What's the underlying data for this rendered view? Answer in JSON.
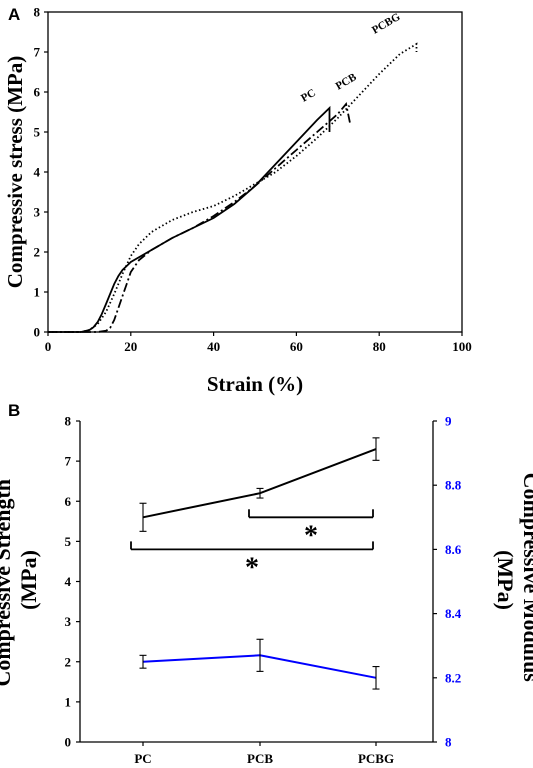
{
  "panels": [
    {
      "label": "A"
    },
    {
      "label": "B"
    }
  ],
  "chart_data": [
    {
      "type": "line",
      "panel": "A",
      "xlabel": "Strain (%)",
      "ylabel": "Compressive stress (MPa)",
      "xlim": [
        0,
        100
      ],
      "ylim": [
        0,
        8
      ],
      "xticks": [
        "0",
        "20",
        "40",
        "60",
        "80",
        "100"
      ],
      "yticks": [
        "0",
        "1",
        "2",
        "3",
        "4",
        "5",
        "6",
        "7",
        "8"
      ],
      "series": [
        {
          "name": "PC",
          "style": "solid",
          "x": [
            0,
            8,
            10,
            11,
            12,
            13,
            14,
            15,
            16,
            17,
            18,
            19,
            20,
            25,
            30,
            35,
            40,
            45,
            50,
            55,
            60,
            65,
            68,
            68
          ],
          "y": [
            0,
            0,
            0.05,
            0.12,
            0.25,
            0.45,
            0.7,
            0.95,
            1.2,
            1.4,
            1.55,
            1.65,
            1.75,
            2.05,
            2.35,
            2.6,
            2.85,
            3.2,
            3.65,
            4.2,
            4.75,
            5.3,
            5.6,
            5.0
          ]
        },
        {
          "name": "PCB",
          "style": "dashdot",
          "x": [
            0,
            12,
            14,
            15,
            16,
            17,
            18,
            19,
            20,
            22,
            25,
            30,
            35,
            40,
            45,
            50,
            55,
            60,
            65,
            70,
            72,
            73
          ],
          "y": [
            0,
            0,
            0.03,
            0.1,
            0.3,
            0.6,
            0.9,
            1.2,
            1.5,
            1.8,
            2.05,
            2.35,
            2.6,
            2.9,
            3.25,
            3.65,
            4.1,
            4.55,
            5.0,
            5.45,
            5.7,
            5.2
          ]
        },
        {
          "name": "PCBG",
          "style": "dotted",
          "x": [
            0,
            8,
            10,
            12,
            14,
            16,
            18,
            20,
            22,
            25,
            30,
            35,
            40,
            45,
            50,
            55,
            60,
            65,
            70,
            75,
            80,
            85,
            89,
            89
          ],
          "y": [
            0,
            0,
            0.05,
            0.2,
            0.5,
            0.95,
            1.45,
            1.9,
            2.2,
            2.5,
            2.8,
            3.0,
            3.15,
            3.4,
            3.7,
            4.0,
            4.4,
            4.85,
            5.35,
            5.9,
            6.45,
            6.95,
            7.2,
            7.0
          ]
        }
      ]
    },
    {
      "type": "line",
      "panel": "B",
      "categories": [
        "PC",
        "PCB",
        "PCBG"
      ],
      "ylabel_left": "Compressive Strength (MPa)",
      "ylabel_right": "Compressive Modulus (MPa)",
      "ylim_left": [
        0,
        8
      ],
      "ylim_right": [
        8,
        9
      ],
      "yticks_left": [
        "0",
        "1",
        "2",
        "3",
        "4",
        "5",
        "6",
        "7",
        "8"
      ],
      "yticks_right": [
        "8",
        "8.2",
        "8.4",
        "8.6",
        "8.8",
        "9"
      ],
      "series": [
        {
          "axis": "left",
          "color": "#000000",
          "values": [
            5.6,
            6.2,
            7.3
          ],
          "errors": [
            0.35,
            0.12,
            0.28
          ]
        },
        {
          "axis": "right",
          "color": "#0000ff",
          "values": [
            8.25,
            8.27,
            8.2
          ],
          "errors": [
            0.02,
            0.05,
            0.035
          ]
        }
      ],
      "significance": [
        {
          "from": "PCB",
          "to": "PCBG",
          "value": 5.6,
          "label": "*"
        },
        {
          "from": "PC",
          "to": "PCBG",
          "value": 4.8,
          "label": "*"
        }
      ],
      "right_axis_color": "#0000ff"
    }
  ]
}
